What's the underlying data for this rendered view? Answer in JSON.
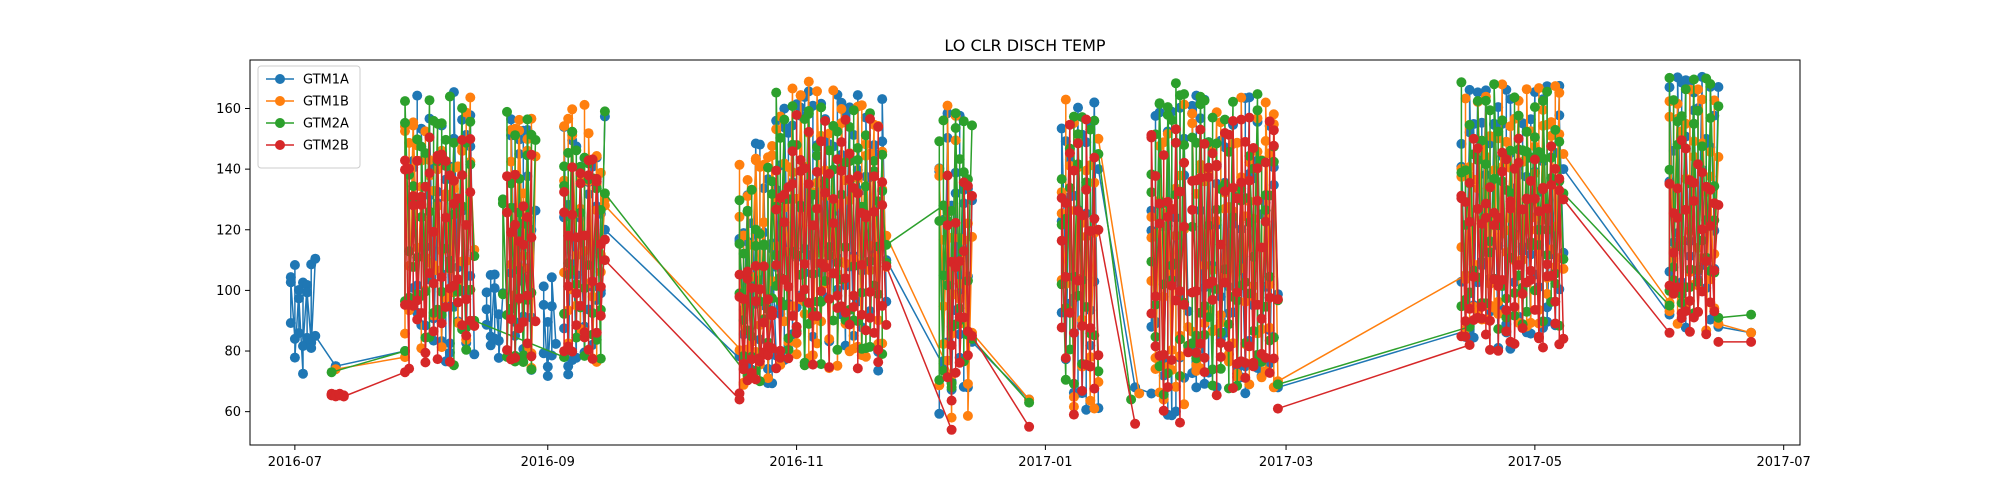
{
  "chart_data": {
    "type": "line",
    "title": "LO CLR DISCH TEMP",
    "xlabel": "",
    "ylabel": "",
    "x_range": [
      "2016-06-20",
      "2017-07-05"
    ],
    "ylim": [
      49,
      176
    ],
    "x_tick_labels": [
      "2016-07",
      "2016-09",
      "2016-11",
      "2017-01",
      "2017-03",
      "2017-05",
      "2017-07"
    ],
    "x_tick_dates": [
      "2016-07-01",
      "2016-09-01",
      "2016-11-01",
      "2017-01-01",
      "2017-03-01",
      "2017-05-01",
      "2017-07-01"
    ],
    "y_ticks": [
      60,
      80,
      100,
      120,
      140,
      160
    ],
    "grid": false,
    "legend_position": "upper left",
    "marker": "circle",
    "series": [
      {
        "name": "GTM1A",
        "color": "#1f77b4",
        "clusters": [
          {
            "start": "2016-06-30",
            "end": "2016-07-06",
            "lo": 72,
            "hi": 111
          },
          {
            "start": "2016-07-30",
            "end": "2016-08-14",
            "lo": 76,
            "hi": 166
          },
          {
            "start": "2016-08-17",
            "end": "2016-08-21",
            "lo": 75,
            "hi": 106
          },
          {
            "start": "2016-08-23",
            "end": "2016-08-29",
            "lo": 70,
            "hi": 158
          },
          {
            "start": "2016-08-31",
            "end": "2016-09-03",
            "lo": 70,
            "hi": 105
          },
          {
            "start": "2016-09-05",
            "end": "2016-09-15",
            "lo": 70,
            "hi": 163
          },
          {
            "start": "2016-10-18",
            "end": "2016-10-27",
            "lo": 67,
            "hi": 150
          },
          {
            "start": "2016-10-27",
            "end": "2016-11-23",
            "lo": 73,
            "hi": 168
          },
          {
            "start": "2016-12-06",
            "end": "2016-12-14",
            "lo": 57,
            "hi": 164
          },
          {
            "start": "2017-01-05",
            "end": "2017-01-14",
            "lo": 60,
            "hi": 163
          },
          {
            "start": "2017-01-27",
            "end": "2017-02-05",
            "lo": 58,
            "hi": 162
          },
          {
            "start": "2017-02-06",
            "end": "2017-02-27",
            "lo": 65,
            "hi": 165
          },
          {
            "start": "2017-04-13",
            "end": "2017-05-08",
            "lo": 80,
            "hi": 168
          },
          {
            "start": "2017-06-03",
            "end": "2017-06-15",
            "lo": 86,
            "hi": 171
          }
        ],
        "connectors": [
          [
            "2016-07-06",
            85,
            "2016-07-11",
            75
          ],
          [
            "2016-07-11",
            75,
            "2016-07-28",
            80
          ],
          [
            "2016-09-15",
            120,
            "2016-10-20",
            75
          ],
          [
            "2016-11-23",
            110,
            "2016-12-09",
            70
          ],
          [
            "2016-12-14",
            83,
            "2016-12-28",
            64
          ],
          [
            "2017-01-14",
            140,
            "2017-01-23",
            68
          ],
          [
            "2017-01-23",
            68,
            "2017-01-27",
            66
          ],
          [
            "2017-02-27",
            68,
            "2017-04-15",
            87
          ],
          [
            "2017-05-08",
            140,
            "2017-06-03",
            92
          ],
          [
            "2017-06-15",
            88,
            "2017-06-23",
            86
          ]
        ]
      },
      {
        "name": "GTM1B",
        "color": "#ff7f0e",
        "clusters": [
          {
            "start": "2016-07-28",
            "end": "2016-08-14",
            "lo": 75,
            "hi": 165
          },
          {
            "start": "2016-08-23",
            "end": "2016-08-29",
            "lo": 74,
            "hi": 162
          },
          {
            "start": "2016-09-05",
            "end": "2016-09-15",
            "lo": 75,
            "hi": 163
          },
          {
            "start": "2016-10-18",
            "end": "2016-10-27",
            "lo": 68,
            "hi": 150
          },
          {
            "start": "2016-10-27",
            "end": "2016-11-23",
            "lo": 74,
            "hi": 169
          },
          {
            "start": "2016-12-06",
            "end": "2016-12-14",
            "lo": 58,
            "hi": 164
          },
          {
            "start": "2017-01-05",
            "end": "2017-01-14",
            "lo": 60,
            "hi": 163
          },
          {
            "start": "2017-01-27",
            "end": "2017-02-05",
            "lo": 60,
            "hi": 162
          },
          {
            "start": "2017-02-06",
            "end": "2017-02-27",
            "lo": 66,
            "hi": 164
          },
          {
            "start": "2017-04-13",
            "end": "2017-05-08",
            "lo": 87,
            "hi": 170
          },
          {
            "start": "2017-06-03",
            "end": "2017-06-15",
            "lo": 86,
            "hi": 168
          }
        ],
        "connectors": [
          [
            "2016-07-11",
            74,
            "2016-07-28",
            78
          ],
          [
            "2016-09-15",
            128,
            "2016-10-20",
            78
          ],
          [
            "2016-11-23",
            118,
            "2016-12-09",
            72
          ],
          [
            "2016-12-14",
            86,
            "2016-12-28",
            64
          ],
          [
            "2017-01-14",
            150,
            "2017-01-24",
            66
          ],
          [
            "2017-02-27",
            70,
            "2017-04-14",
            105
          ],
          [
            "2017-05-08",
            145,
            "2017-06-03",
            96
          ],
          [
            "2017-06-15",
            89,
            "2017-06-23",
            86
          ]
        ]
      },
      {
        "name": "GTM2A",
        "color": "#2ca02c",
        "clusters": [
          {
            "start": "2016-07-28",
            "end": "2016-08-14",
            "lo": 74,
            "hi": 165
          },
          {
            "start": "2016-08-21",
            "end": "2016-08-29",
            "lo": 73,
            "hi": 160
          },
          {
            "start": "2016-09-05",
            "end": "2016-09-15",
            "lo": 75,
            "hi": 160
          },
          {
            "start": "2016-10-18",
            "end": "2016-10-27",
            "lo": 68,
            "hi": 145
          },
          {
            "start": "2016-10-27",
            "end": "2016-11-23",
            "lo": 75,
            "hi": 168
          },
          {
            "start": "2016-12-06",
            "end": "2016-12-14",
            "lo": 65,
            "hi": 166
          },
          {
            "start": "2017-01-05",
            "end": "2017-01-14",
            "lo": 62,
            "hi": 164
          },
          {
            "start": "2017-01-27",
            "end": "2017-02-05",
            "lo": 62,
            "hi": 169
          },
          {
            "start": "2017-02-06",
            "end": "2017-02-27",
            "lo": 67,
            "hi": 165
          },
          {
            "start": "2017-04-13",
            "end": "2017-05-08",
            "lo": 87,
            "hi": 169
          },
          {
            "start": "2017-06-03",
            "end": "2017-06-15",
            "lo": 89,
            "hi": 171
          }
        ],
        "connectors": [
          [
            "2016-07-10",
            73,
            "2016-07-28",
            80
          ],
          [
            "2016-08-14",
            90,
            "2016-09-05",
            78
          ],
          [
            "2016-09-15",
            132,
            "2016-10-20",
            72
          ],
          [
            "2016-11-23",
            115,
            "2016-12-07",
            128
          ],
          [
            "2016-12-07",
            128,
            "2016-12-09",
            68
          ],
          [
            "2016-12-14",
            84,
            "2016-12-28",
            63
          ],
          [
            "2017-01-14",
            145,
            "2017-01-22",
            64
          ],
          [
            "2017-02-27",
            69,
            "2017-04-15",
            88
          ],
          [
            "2017-05-08",
            132,
            "2017-06-03",
            95
          ],
          [
            "2017-06-15",
            91,
            "2017-06-23",
            92
          ]
        ]
      },
      {
        "name": "GTM2B",
        "color": "#d62728",
        "clusters": [
          {
            "start": "2016-07-10",
            "end": "2016-07-13",
            "lo": 65,
            "hi": 66
          },
          {
            "start": "2016-07-28",
            "end": "2016-08-14",
            "lo": 73,
            "hi": 151
          },
          {
            "start": "2016-08-22",
            "end": "2016-08-29",
            "lo": 72,
            "hi": 150
          },
          {
            "start": "2016-09-05",
            "end": "2016-09-15",
            "lo": 70,
            "hi": 149
          },
          {
            "start": "2016-10-18",
            "end": "2016-10-27",
            "lo": 64,
            "hi": 110
          },
          {
            "start": "2016-10-27",
            "end": "2016-11-23",
            "lo": 74,
            "hi": 160
          },
          {
            "start": "2016-12-08",
            "end": "2016-12-14",
            "lo": 54,
            "hi": 148
          },
          {
            "start": "2017-01-05",
            "end": "2017-01-14",
            "lo": 59,
            "hi": 161
          },
          {
            "start": "2017-01-27",
            "end": "2017-02-05",
            "lo": 56,
            "hi": 158
          },
          {
            "start": "2017-02-06",
            "end": "2017-02-27",
            "lo": 61,
            "hi": 157
          },
          {
            "start": "2017-04-13",
            "end": "2017-05-08",
            "lo": 80,
            "hi": 152
          },
          {
            "start": "2017-06-03",
            "end": "2017-06-15",
            "lo": 83,
            "hi": 150
          }
        ],
        "connectors": [
          [
            "2016-07-13",
            65,
            "2016-07-28",
            73
          ],
          [
            "2016-09-15",
            110,
            "2016-10-18",
            64
          ],
          [
            "2016-11-23",
            108,
            "2016-12-09",
            54
          ],
          [
            "2016-12-14",
            85,
            "2016-12-28",
            55
          ],
          [
            "2017-01-14",
            120,
            "2017-01-23",
            56
          ],
          [
            "2017-02-27",
            61,
            "2017-04-15",
            82
          ],
          [
            "2017-05-08",
            130,
            "2017-06-03",
            86
          ],
          [
            "2017-06-15",
            83,
            "2017-06-23",
            83
          ]
        ]
      }
    ]
  }
}
